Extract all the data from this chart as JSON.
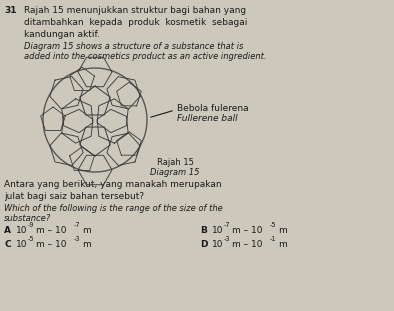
{
  "question_num": "31",
  "malay_line1": "Rajah 15 menunjukkan struktur bagi bahan yang",
  "malay_line2": "ditambahkan  kepada  produk  kosmetik  sebagai",
  "malay_line3": "kandungan aktif.",
  "eng_line1": "Diagram 15 shows a structure of a substance that is",
  "eng_line2": "added into the cosmetics product as an active ingredient.",
  "label_malay": "Bebola fulerena",
  "label_eng": "Fullerene ball",
  "cap_malay": "Rajah 15",
  "cap_eng": "Diagram 15",
  "q_malay1": "Antara yang berikut, yang manakah merupakan",
  "q_malay2": "julat bagi saiz bahan tersebut?",
  "q_eng1": "Which of the following is the range of the size of the",
  "q_eng2": "substance?",
  "bg_color": "#ccc9bc",
  "text_color": "#1a1a1a",
  "fs_main": 6.5,
  "fs_italic": 6.0,
  "fs_cap": 6.0,
  "fs_small": 4.8
}
